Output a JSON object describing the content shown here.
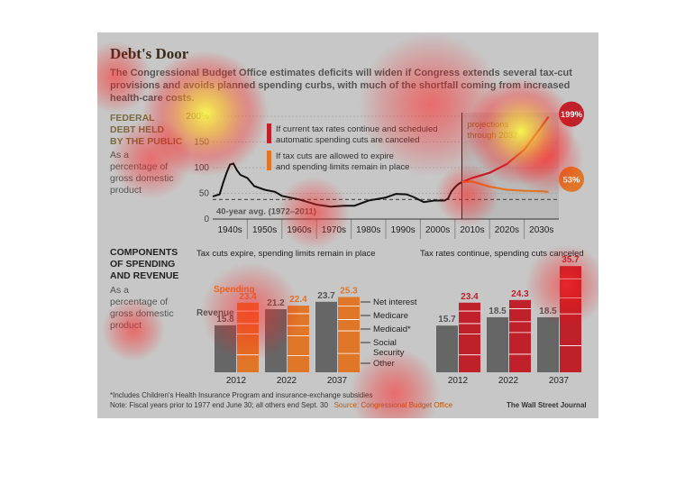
{
  "title": "Debt's Door",
  "intro": "The Congressional Budget Office estimates deficits will widen if Congress extends several tax-cut provisions and avoids planned spending curbs, with much of the shortfall coming from increased health-care costs.",
  "debt_section": {
    "title_lines": [
      "FEDERAL",
      "DEBT HELD",
      "BY THE PUBLIC"
    ],
    "subtitle_lines": [
      "As a",
      "percentage of",
      "gross domestic",
      "product"
    ],
    "projection_label_lines": [
      "projections",
      "through 2037"
    ],
    "avg_label": "40-year avg. (1972–2011)",
    "legend": [
      {
        "lines": [
          "If current tax rates continue and scheduled",
          "automatic spending cuts are canceled"
        ],
        "color": "#c0202a"
      },
      {
        "lines": [
          "If tax cuts are allowed to expire",
          "and spending limits remain in place"
        ],
        "color": "#e07628"
      }
    ],
    "end_labels": [
      "199%",
      "53%"
    ]
  },
  "components_section": {
    "title_lines": [
      "COMPONENTS",
      "OF SPENDING",
      "AND REVENUE"
    ],
    "subtitle_lines": [
      "As a",
      "percentage of",
      "gross domestic",
      "product"
    ],
    "left_title": "Tax cuts expire, spending limits remain in place",
    "right_title": "Tax rates continue, spending cuts canceled",
    "spending_label": "Spending",
    "revenue_label": "Revenue",
    "component_labels": [
      "Net interest",
      "Medicare",
      "Medicaid*",
      "Social Security",
      "Other"
    ]
  },
  "footnote": "*Includes Children's Health Insurance Program and insurance-exchange subsidies",
  "note": "Note: Fiscal years prior to 1977 end June 30; all others end Sept. 30",
  "source": "Source: Congressional Budget Office",
  "credit": "The Wall Street Journal",
  "colors": {
    "background": "#c7c7c7",
    "spending_orange": "#e07628",
    "red_scenario": "#c0202a",
    "revenue_gray": "#666666",
    "history_line": "#111111"
  },
  "chart_data": [
    {
      "type": "line",
      "title": "FEDERAL DEBT HELD BY THE PUBLIC",
      "ylabel": "As a percentage of gross domestic product",
      "x_ticks": [
        "1940s",
        "1950s",
        "1960s",
        "1970s",
        "1980s",
        "1990s",
        "2000s",
        "2010s",
        "2020s",
        "2030s"
      ],
      "xlim": [
        1940,
        2040
      ],
      "ylim": [
        0,
        200
      ],
      "y_ticks": [
        0,
        50,
        100,
        150,
        200
      ],
      "y_tick_labels": [
        "0",
        "50",
        "100",
        "150",
        "200%"
      ],
      "average": {
        "label": "40-year avg. (1972–2011)",
        "value": 38
      },
      "projection_start": 2012,
      "series": [
        {
          "x": [
            1940,
            1942,
            1943,
            1944,
            1945,
            1946,
            1947,
            1948,
            1950,
            1952,
            1955,
            1958,
            1960,
            1965,
            1970,
            1974,
            1978,
            1981,
            1985,
            1990,
            1993,
            1996,
            1998,
            2001,
            2004,
            2007,
            2008,
            2009,
            2010,
            2011,
            2012
          ],
          "y": [
            44,
            48,
            70,
            90,
            106,
            108,
            95,
            86,
            80,
            64,
            57,
            53,
            45,
            38,
            28,
            24,
            26,
            26,
            36,
            42,
            49,
            48,
            43,
            33,
            36,
            36,
            40,
            54,
            62,
            68,
            72
          ]
        },
        {
          "name": "If current tax rates continue and scheduled automatic spending cuts are canceled",
          "x": [
            2012,
            2015,
            2020,
            2025,
            2030,
            2035,
            2037
          ],
          "y": [
            72,
            80,
            90,
            107,
            135,
            180,
            199
          ]
        },
        {
          "name": "If tax cuts are allowed to expire and spending limits remain in place",
          "x": [
            2012,
            2015,
            2020,
            2025,
            2030,
            2035,
            2037
          ],
          "y": [
            72,
            73,
            63,
            57,
            55,
            54,
            53
          ]
        }
      ]
    },
    {
      "type": "bar",
      "title": "Tax cuts expire, spending limits remain in place",
      "categories": [
        "2012",
        "2022",
        "2037"
      ],
      "ylim": [
        0,
        40
      ],
      "series": [
        {
          "name": "Revenue",
          "values": [
            15.8,
            21.2,
            23.7
          ]
        },
        {
          "name": "Spending",
          "values": [
            23.4,
            22.4,
            25.3
          ]
        }
      ]
    },
    {
      "type": "bar",
      "title": "Tax rates continue, spending cuts canceled",
      "categories": [
        "2012",
        "2022",
        "2037"
      ],
      "ylim": [
        0,
        40
      ],
      "series": [
        {
          "name": "Revenue",
          "values": [
            15.7,
            18.5,
            18.5
          ]
        },
        {
          "name": "Spending",
          "values": [
            23.4,
            24.3,
            35.7
          ]
        }
      ]
    }
  ]
}
